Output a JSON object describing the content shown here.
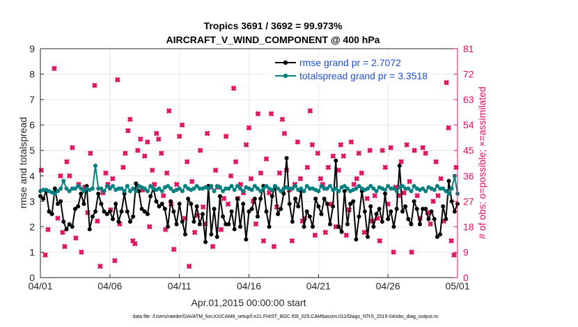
{
  "chart_data": {
    "type": "line",
    "title_line1": "Tropics 3691 / 3692 = 99.973%",
    "title_line2": "AIRCRAFT_V_WIND_COMPONENT @ 400 hPa",
    "xlabel": "Apr.01,2015 00:00:00 start",
    "ylabel_left": "rmse and totalspread",
    "ylabel_right": "# of obs: o=possible; ×=assimilated",
    "x_ticks": [
      "04/01",
      "04/06",
      "04/11",
      "04/16",
      "04/21",
      "04/26",
      "05/01"
    ],
    "y_ticks_left": [
      "0",
      "1",
      "2",
      "3",
      "4",
      "5",
      "6",
      "7",
      "8",
      "9"
    ],
    "y_ticks_right": [
      "0",
      "9",
      "18",
      "27",
      "36",
      "45",
      "54",
      "63",
      "72",
      "81"
    ],
    "xlim_days": [
      0,
      30
    ],
    "ylim_left": [
      0,
      9
    ],
    "ylim_right": [
      0,
      81
    ],
    "grid": true,
    "legend_position": "top-right",
    "footer": "data file: /Users/raeder/DAI/ATM_forcXX/CAM6_setup/f.e21.FHIST_BGC.f09_025.CAM6assim.011/Diags_NTrS_2015-04/obs_diag_output.nc",
    "colors": {
      "rmse": "#000000",
      "totalspread": "#008080",
      "obs": "#e0115f",
      "legend_text": "#1f4fd8",
      "grid": "#e6e6e6"
    },
    "series": [
      {
        "name": "rmse",
        "legend_label": "rmse grand pr = 2.7072",
        "values": [
          3.2,
          3.1,
          3.4,
          2.6,
          2.5,
          3.5,
          2.9,
          3.0,
          2.2,
          1.9,
          2.1,
          2.0,
          2.7,
          2.8,
          3.3,
          2.9,
          3.6,
          1.9,
          2.4,
          2.6,
          3.3,
          2.9,
          2.6,
          2.5,
          2.6,
          2.3,
          2.9,
          2.2,
          2.6,
          3.3,
          2.6,
          2.2,
          2.4,
          3.7,
          3.4,
          2.7,
          2.6,
          2.5,
          3.2,
          3.5,
          3.0,
          2.8,
          2.9,
          2.7,
          2.0,
          3.0,
          2.6,
          2.1,
          2.9,
          2.2,
          1.7,
          3.1,
          2.9,
          2.2,
          2.8,
          2.1,
          2.5,
          1.4,
          3.6,
          1.7,
          2.7,
          1.6,
          3.2,
          2.4,
          2.1,
          2.1,
          2.6,
          1.9,
          3.1,
          2.0,
          2.9,
          1.5,
          2.6,
          2.7,
          3.1,
          2.4,
          3.1,
          3.6,
          2.6,
          2.0,
          3.2,
          3.6,
          2.5,
          2.7,
          3.3,
          4.7,
          2.9,
          2.2,
          3.1,
          2.8,
          3.4,
          2.0,
          2.6,
          2.4,
          2.0,
          3.1,
          2.8,
          2.5,
          3.1,
          2.9,
          2.1,
          2.8,
          4.6,
          2.0,
          1.8,
          3.4,
          2.1,
          2.9,
          3.0,
          1.5,
          2.4,
          3.4,
          2.6,
          1.6,
          2.8,
          2.0,
          2.5,
          2.7,
          2.2,
          3.3,
          2.3,
          2.6,
          2.0,
          2.7,
          4.4,
          2.6,
          2.8,
          2.3,
          2.1,
          3.0,
          2.7,
          2.1,
          2.7,
          2.7,
          2.3,
          2.6,
          2.3,
          1.6,
          1.7,
          2.8,
          2.3,
          3.8,
          3.0,
          2.6,
          2.9
        ]
      },
      {
        "name": "totalspread",
        "legend_label": "totalspread grand pr = 3.3518",
        "values": [
          3.4,
          3.45,
          3.45,
          3.4,
          3.35,
          3.3,
          3.4,
          3.5,
          3.8,
          3.5,
          3.4,
          3.5,
          3.5,
          3.6,
          3.5,
          3.4,
          3.5,
          3.45,
          3.5,
          4.4,
          3.5,
          3.5,
          3.4,
          3.6,
          3.5,
          3.6,
          3.45,
          3.5,
          3.5,
          3.4,
          3.6,
          3.4,
          3.5,
          3.4,
          3.6,
          3.55,
          3.5,
          3.4,
          3.6,
          3.5,
          3.45,
          3.5,
          3.4,
          3.55,
          3.6,
          3.5,
          3.4,
          3.45,
          3.5,
          3.4,
          3.6,
          3.5,
          3.45,
          3.5,
          3.6,
          3.5,
          3.5,
          3.55,
          3.5,
          3.6,
          3.4,
          3.6,
          3.55,
          3.4,
          3.5,
          3.5,
          3.6,
          3.45,
          3.6,
          3.5,
          3.4,
          3.55,
          3.5,
          3.45,
          3.6,
          3.5,
          3.4,
          3.5,
          3.6,
          3.5,
          3.45,
          3.6,
          3.5,
          3.4,
          3.5,
          3.55,
          3.5,
          3.5,
          3.6,
          3.45,
          3.5,
          3.4,
          3.6,
          3.5,
          3.5,
          3.45,
          3.4,
          3.6,
          3.5,
          3.5,
          3.6,
          3.45,
          3.5,
          3.4,
          3.55,
          3.6,
          3.5,
          3.4,
          3.45,
          3.5,
          3.6,
          3.5,
          3.45,
          3.5,
          3.6,
          3.5,
          3.4,
          3.55,
          3.5,
          3.45,
          3.6,
          3.5,
          3.5,
          3.4,
          3.55,
          3.6,
          3.5,
          3.5,
          3.4,
          3.6,
          3.5,
          3.45,
          3.5,
          3.4,
          3.55,
          3.5,
          3.45,
          3.6,
          3.5,
          3.5,
          3.4,
          3.3,
          3.5,
          4.0,
          3.3
        ]
      }
    ],
    "obs_possible_x": [
      0.06,
      0.35,
      0.55,
      1.0,
      1.25,
      1.45,
      1.6,
      1.75,
      1.9,
      2.1,
      2.3,
      2.55,
      2.75,
      2.95,
      3.2,
      3.4,
      3.6,
      3.9,
      4.1,
      4.3,
      4.5,
      4.7,
      4.85,
      5.05,
      5.2,
      5.35,
      5.55,
      5.7,
      5.95,
      6.1,
      6.3,
      6.45,
      6.65,
      6.8,
      7.0,
      7.2,
      7.35,
      7.5,
      7.7,
      7.85,
      8.05,
      8.2,
      8.35,
      8.5,
      8.7,
      8.85,
      9.0,
      9.1,
      9.25,
      9.4,
      9.6,
      9.8,
      10.0,
      10.2,
      10.4,
      10.55,
      10.7,
      10.9,
      11.1,
      11.3,
      11.5,
      11.7,
      11.85,
      12.0,
      12.2,
      12.4,
      12.6,
      12.8,
      13.0,
      13.2,
      13.35,
      13.5,
      13.7,
      13.9,
      14.05,
      14.2,
      14.4,
      14.6,
      14.8,
      15.0,
      15.15,
      15.3,
      15.5,
      15.65,
      15.85,
      16.05,
      16.25,
      16.45,
      16.6,
      16.8,
      17.0,
      17.2,
      17.4,
      17.55,
      17.7,
      17.9,
      18.1,
      18.3,
      18.5,
      18.7,
      18.85,
      19.0,
      19.2,
      19.4,
      19.55,
      19.75,
      19.95,
      20.15,
      20.3,
      20.5,
      20.7,
      20.9,
      21.05,
      21.25,
      21.45,
      21.6,
      21.8,
      22.0,
      22.2,
      22.35,
      22.55,
      22.75,
      22.9,
      23.1,
      23.3,
      23.5,
      23.7,
      23.85,
      24.05,
      24.25,
      24.4,
      24.6,
      24.8,
      25.0,
      25.2,
      25.4,
      25.55,
      25.75,
      25.95,
      26.15,
      26.35,
      26.55,
      26.7,
      26.9,
      27.1,
      27.3,
      27.5,
      27.7,
      27.85,
      28.05,
      28.25,
      28.45,
      28.6,
      28.8,
      29.0,
      29.2,
      29.35,
      29.55,
      29.75,
      29.9
    ],
    "obs_possible_y": [
      38,
      8,
      17,
      74,
      21,
      36,
      16,
      11,
      41,
      36,
      46,
      14,
      33,
      9,
      32,
      23,
      44,
      68,
      20,
      4,
      30,
      37,
      33,
      24,
      35,
      6,
      70,
      19,
      39,
      44,
      52,
      56,
      13,
      12,
      45,
      49,
      31,
      43,
      48,
      18,
      38,
      33,
      51,
      49,
      44,
      29,
      17,
      37,
      59,
      26,
      10,
      33,
      50,
      54,
      21,
      41,
      4,
      34,
      16,
      22,
      45,
      25,
      19,
      51,
      32,
      11,
      38,
      32,
      17,
      28,
      50,
      26,
      36,
      67,
      41,
      28,
      33,
      30,
      47,
      53,
      35,
      27,
      19,
      58,
      37,
      13,
      42,
      30,
      58,
      11,
      25,
      37,
      56,
      51,
      38,
      31,
      13,
      33,
      48,
      35,
      20,
      21,
      39,
      59,
      47,
      15,
      44,
      35,
      33,
      16,
      39,
      26,
      43,
      18,
      38,
      47,
      43,
      15,
      24,
      48,
      33,
      35,
      44,
      37,
      16,
      28,
      45,
      20,
      29,
      21,
      13,
      45,
      39,
      26,
      46,
      9,
      32,
      29,
      41,
      30,
      47,
      34,
      9,
      45,
      29,
      21,
      46,
      44,
      23,
      19,
      27,
      41,
      29,
      35,
      20,
      69,
      53,
      13,
      8,
      39
    ]
  }
}
